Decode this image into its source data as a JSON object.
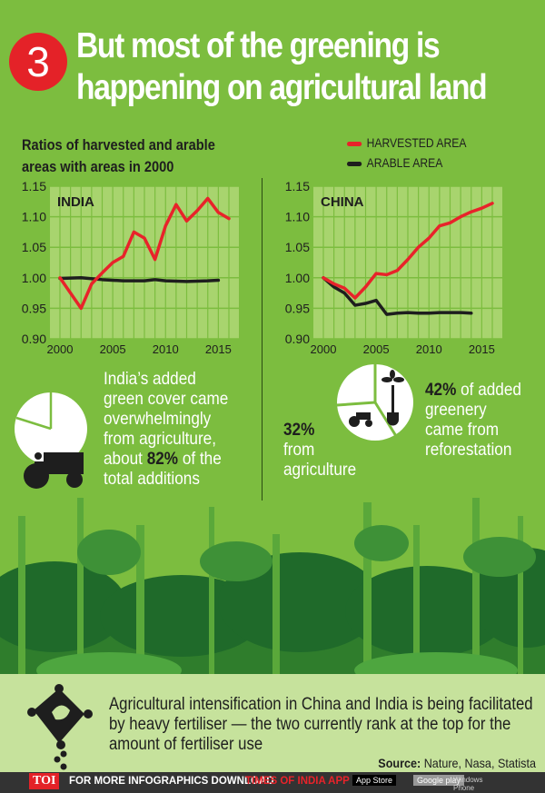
{
  "header": {
    "number": "3",
    "title_line1": "But most of the greening is",
    "title_line2": "happening on agricultural land"
  },
  "subtitle_line1": "Ratios of harvested and arable",
  "subtitle_line2": "areas with areas in 2000",
  "legend": [
    {
      "label": "HARVESTED AREA",
      "color": "#e8232a"
    },
    {
      "label": "ARABLE AREA",
      "color": "#1e1e1e"
    }
  ],
  "chart_data": [
    {
      "type": "line",
      "title": "INDIA",
      "ylim": [
        0.9,
        1.15
      ],
      "yticks": [
        "1.15",
        "1.10",
        "1.05",
        "1.00",
        "0.95",
        "0.90"
      ],
      "xticks": [
        "2000",
        "2005",
        "2010",
        "2015"
      ],
      "xlim": [
        2000,
        2016
      ],
      "grid": true,
      "series": [
        {
          "name": "HARVESTED AREA",
          "color": "#e8232a",
          "x": [
            2000,
            2001,
            2002,
            2003,
            2004,
            2005,
            2006,
            2007,
            2008,
            2009,
            2010,
            2011,
            2012,
            2013,
            2014,
            2015,
            2016
          ],
          "y": [
            1.0,
            0.975,
            0.95,
            0.99,
            1.008,
            1.025,
            1.035,
            1.075,
            1.065,
            1.03,
            1.085,
            1.12,
            1.093,
            1.11,
            1.13,
            1.107,
            1.097
          ]
        },
        {
          "name": "ARABLE AREA",
          "color": "#1e1e1e",
          "x": [
            2000,
            2002,
            2004,
            2006,
            2008,
            2009,
            2010,
            2012,
            2014,
            2015
          ],
          "y": [
            0.999,
            1.0,
            0.997,
            0.995,
            0.995,
            0.997,
            0.995,
            0.994,
            0.995,
            0.996
          ]
        }
      ]
    },
    {
      "type": "line",
      "title": "CHINA",
      "ylim": [
        0.9,
        1.15
      ],
      "yticks": [
        "1.15",
        "1.10",
        "1.05",
        "1.00",
        "0.95",
        "0.90"
      ],
      "xticks": [
        "2000",
        "2005",
        "2010",
        "2015"
      ],
      "xlim": [
        2000,
        2016
      ],
      "grid": true,
      "series": [
        {
          "name": "HARVESTED AREA",
          "color": "#e8232a",
          "x": [
            2000,
            2001,
            2002,
            2003,
            2004,
            2005,
            2006,
            2007,
            2008,
            2009,
            2010,
            2011,
            2012,
            2013,
            2014,
            2015,
            2016
          ],
          "y": [
            1.0,
            0.99,
            0.983,
            0.967,
            0.985,
            1.007,
            1.005,
            1.012,
            1.03,
            1.05,
            1.065,
            1.085,
            1.09,
            1.1,
            1.108,
            1.114,
            1.122
          ]
        },
        {
          "name": "ARABLE AREA",
          "color": "#1e1e1e",
          "x": [
            2000,
            2001,
            2002,
            2003,
            2004,
            2005,
            2006,
            2007,
            2008,
            2009,
            2010,
            2011,
            2012,
            2013,
            2014
          ],
          "y": [
            1.0,
            0.985,
            0.975,
            0.955,
            0.958,
            0.963,
            0.94,
            0.942,
            0.943,
            0.942,
            0.942,
            0.943,
            0.943,
            0.943,
            0.942
          ]
        }
      ]
    }
  ],
  "india_note": {
    "lines": [
      "India’s added",
      "green cover came",
      "overwhelmingly",
      "from agriculture,"
    ],
    "about": "about ",
    "pct": "82%",
    "after": " of the",
    "last": "total additions",
    "pie_share": 82
  },
  "china_note": {
    "agri_pct": "32%",
    "agri_l1": "from",
    "agri_l2": "agriculture",
    "ref_pct": "42%",
    "ref_after": " of added",
    "ref_l2": "greenery",
    "ref_l3": "came from",
    "ref_l4": "reforestation",
    "pie_shares": [
      32,
      42
    ]
  },
  "bottom": {
    "text": "Agricultural intensification in China and India is being facilitated by heavy fertiliser — the two currently rank at the top for the amount of fertiliser use",
    "source_label": "Source:",
    "source": " Nature, Nasa, Statista"
  },
  "footer": {
    "logo": "TOI",
    "text": "FOR MORE  INFOGRAPHICS DOWNLOAD",
    "app": "TIMES OF INDIA  APP",
    "appstore": "App Store",
    "googleplay": "Google play",
    "windows": "Windows Phone"
  }
}
